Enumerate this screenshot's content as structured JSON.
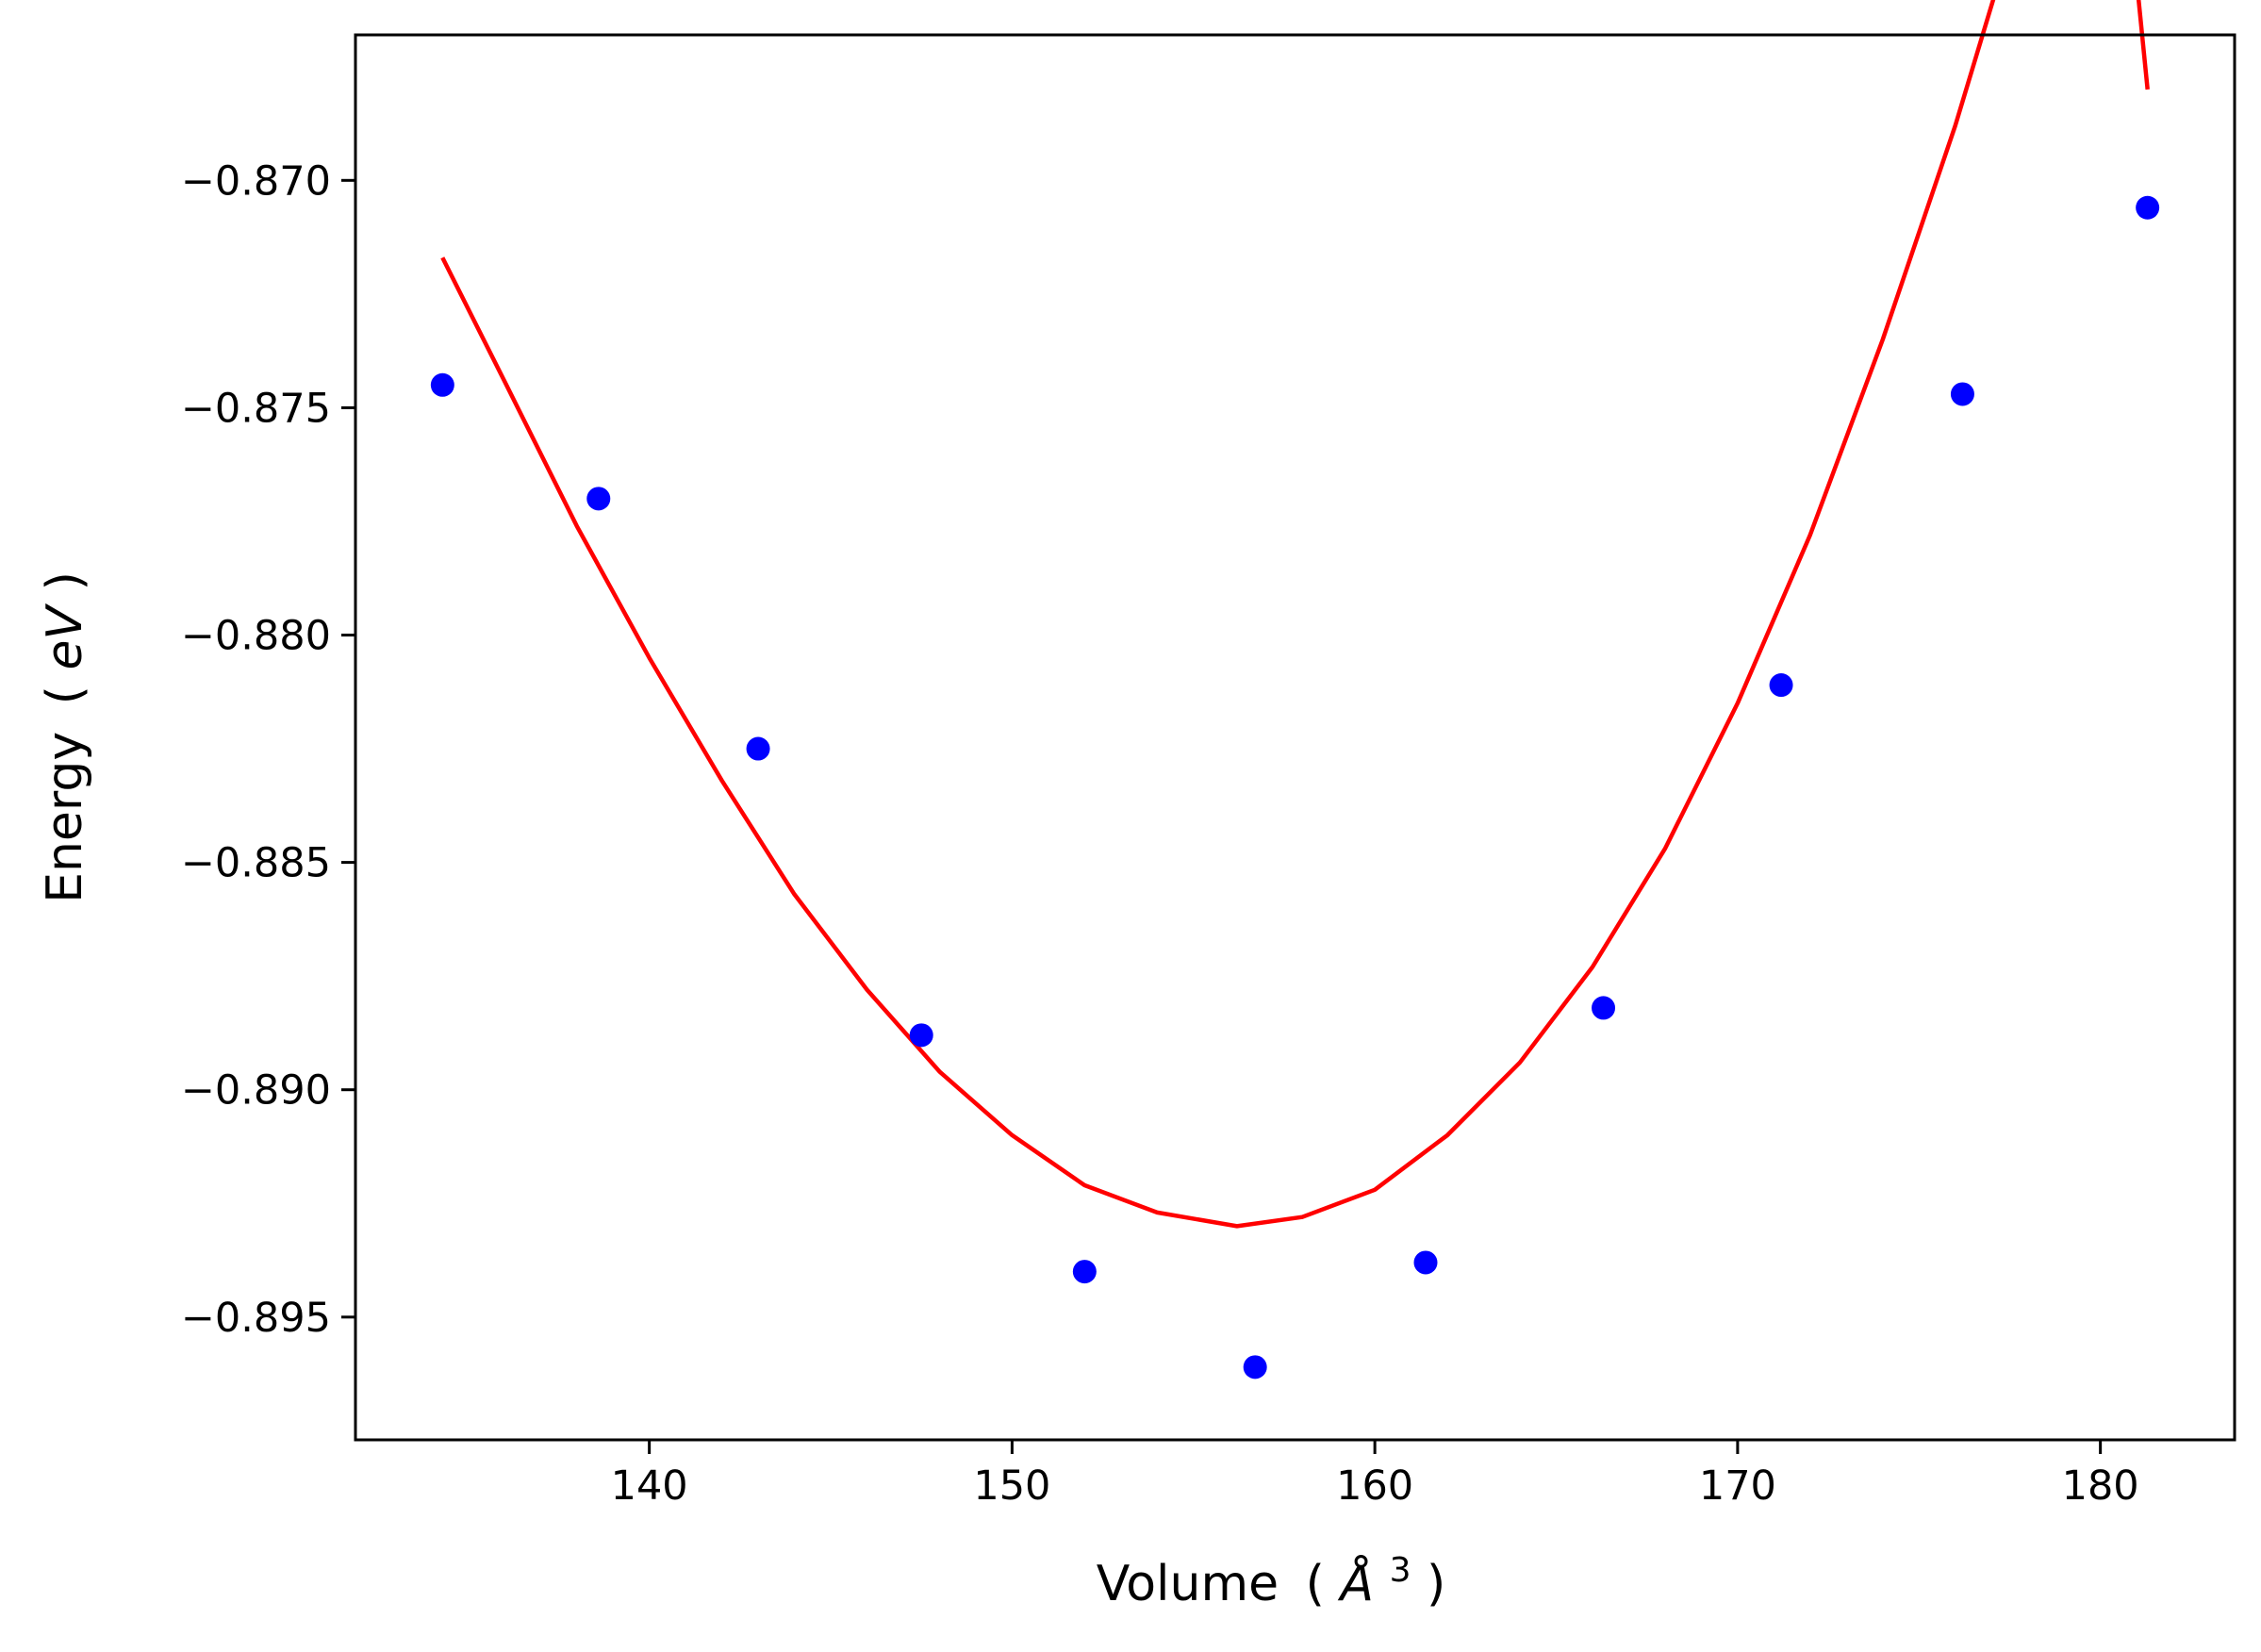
{
  "chart_data": {
    "type": "scatter",
    "title": "",
    "xlabel": "Volume",
    "xlabel_unit_prefix": "(",
    "xlabel_unit_symbol": "Å",
    "xlabel_unit_exponent": "3",
    "xlabel_unit_suffix": ")",
    "ylabel": "Energy",
    "ylabel_unit_prefix": "(",
    "ylabel_unit_symbol": "eV",
    "ylabel_unit_suffix": ")",
    "xlim": [
      131.9,
      183.7
    ],
    "ylim": [
      -0.8977,
      -0.8668
    ],
    "xticks": [
      140,
      150,
      160,
      170,
      180
    ],
    "xtick_labels": [
      "140",
      "150",
      "160",
      "170",
      "180"
    ],
    "yticks": [
      -0.895,
      -0.89,
      -0.885,
      -0.88,
      -0.875,
      -0.87
    ],
    "ytick_labels": [
      "−0.895",
      "−0.890",
      "−0.885",
      "−0.880",
      "−0.875",
      "−0.870"
    ],
    "grid": false,
    "series": [
      {
        "kind": "scatter",
        "color": "#0000ff",
        "x": [
          134.3,
          138.6,
          143.0,
          147.5,
          152.0,
          156.7,
          161.4,
          166.3,
          171.2,
          176.2,
          181.3
        ],
        "y": [
          -0.8745,
          -0.877,
          -0.8825,
          -0.8888,
          -0.894,
          -0.8961,
          -0.8938,
          -0.8882,
          -0.8811,
          -0.8747,
          -0.8706
        ]
      },
      {
        "kind": "line",
        "color": "#ff0000",
        "x": [
          134.3,
          136.0,
          138.0,
          140.0,
          142.0,
          144.0,
          146.0,
          148.0,
          150.0,
          152.0,
          154.0,
          156.2,
          158.0,
          160.0,
          162.0,
          164.0,
          166.0,
          168.0,
          170.0,
          172.0,
          174.0,
          176.0,
          178.0,
          180.0,
          181.3
        ],
        "y": [
          -0.8717,
          -0.8744,
          -0.8776,
          -0.8805,
          -0.8832,
          -0.8857,
          -0.8878,
          -0.8896,
          -0.891,
          -0.8921,
          -0.8927,
          -0.893,
          -0.8928,
          -0.8922,
          -0.891,
          -0.8894,
          -0.8873,
          -0.8847,
          -0.8815,
          -0.8778,
          -0.8735,
          -0.8688,
          -0.8635,
          -0.8576,
          -0.868
        ]
      }
    ]
  }
}
